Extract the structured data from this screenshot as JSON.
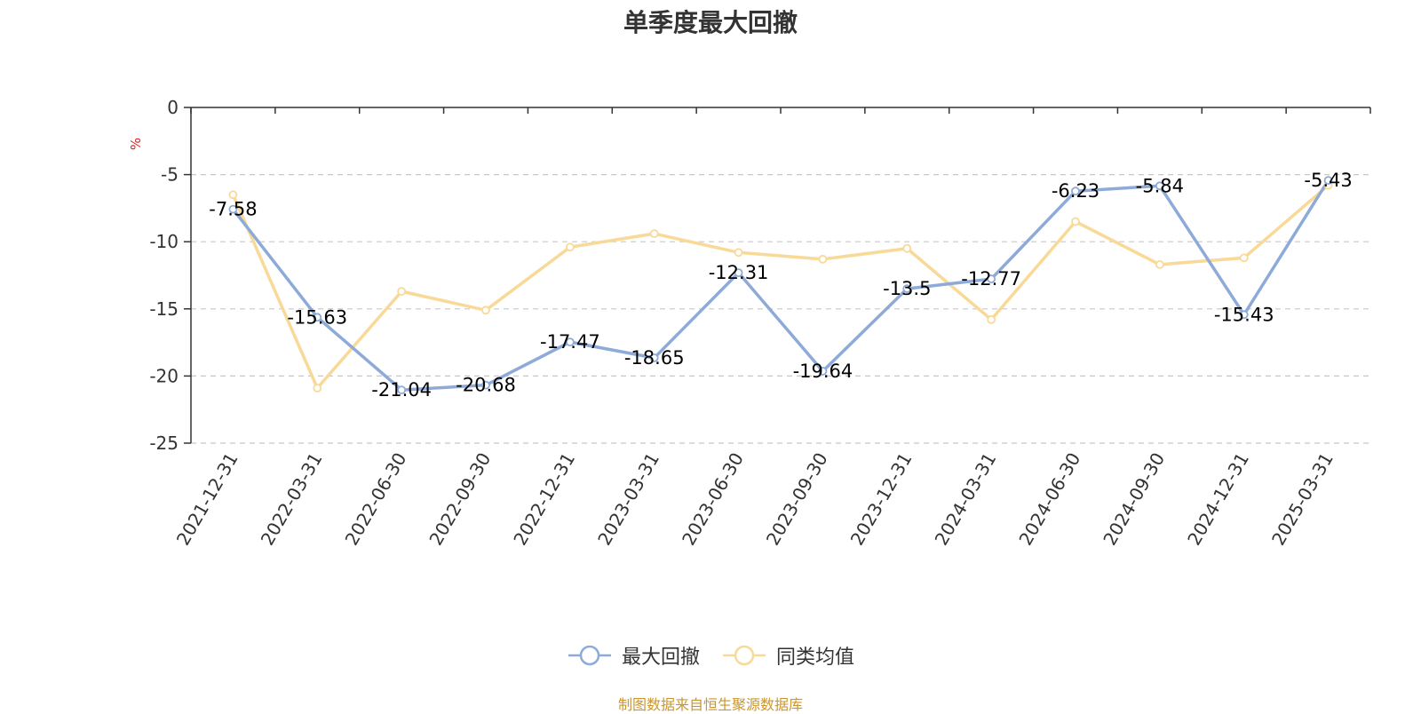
{
  "chart_data": {
    "type": "line",
    "title": "单季度最大回撤",
    "ylabel": "%",
    "xlabel": "",
    "categories": [
      "2021-12-31",
      "2022-03-31",
      "2022-06-30",
      "2022-09-30",
      "2022-12-31",
      "2023-03-31",
      "2023-06-30",
      "2023-09-30",
      "2023-12-31",
      "2024-03-31",
      "2024-06-30",
      "2024-09-30",
      "2024-12-31",
      "2025-03-31"
    ],
    "series": [
      {
        "name": "最大回撤",
        "color": "#8eaad8",
        "values": [
          -7.58,
          -15.63,
          -21.04,
          -20.68,
          -17.47,
          -18.65,
          -12.31,
          -19.64,
          -13.5,
          -12.77,
          -6.23,
          -5.84,
          -15.43,
          -5.43
        ],
        "data_labels": [
          "-7.58",
          "-15.63",
          "-21.04",
          "-20.68",
          "-17.47",
          "-18.65",
          "-12.31",
          "-19.64",
          "-13.5",
          "-12.77",
          "-6.23",
          "-5.84",
          "-15.43",
          "-5.43"
        ]
      },
      {
        "name": "同类均值",
        "color": "#f9d997",
        "values": [
          -6.5,
          -20.9,
          -13.7,
          -15.1,
          -10.4,
          -9.4,
          -10.8,
          -11.3,
          -10.5,
          -15.8,
          -8.5,
          -11.7,
          -11.2,
          -5.8
        ]
      }
    ],
    "ylim": [
      -25,
      0
    ],
    "yticks": [
      0,
      -5,
      -10,
      -15,
      -20,
      -25
    ],
    "ytick_labels": [
      "0",
      "-5",
      "-10",
      "-15",
      "-20",
      "-25"
    ],
    "grid": true,
    "legend": "bottom-center"
  },
  "source_note": "制图数据来自恒生聚源数据库"
}
